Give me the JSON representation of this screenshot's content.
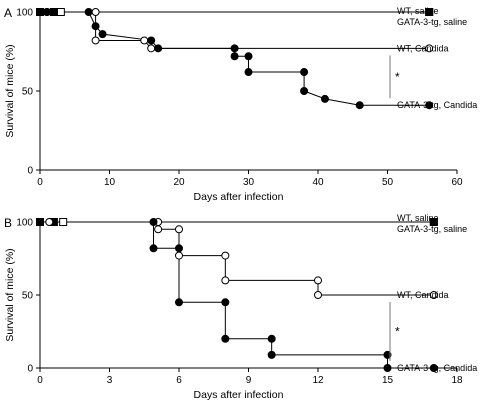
{
  "chart_data": [
    {
      "type": "line",
      "step": true,
      "panel_label": "A",
      "xlabel": "Days after infection",
      "ylabel": "Survival of mice (%)",
      "xlim": [
        0,
        60
      ],
      "ylim": [
        0,
        100
      ],
      "xticks": [
        0,
        10,
        20,
        30,
        40,
        50,
        60
      ],
      "yticks": [
        0,
        50,
        100
      ],
      "grid": false,
      "series": [
        {
          "name": "WT, saline",
          "marker": "open-square",
          "x": [
            0,
            3,
            56
          ],
          "y": [
            100,
            100,
            100
          ]
        },
        {
          "name": "GATA-3-tg, saline",
          "marker": "filled-square",
          "x": [
            0,
            2,
            56
          ],
          "y": [
            100,
            100,
            100
          ]
        },
        {
          "name": "WT, Candida",
          "marker": "open-circle",
          "x": [
            0,
            1,
            8,
            8,
            15,
            16,
            56
          ],
          "y": [
            100,
            100,
            100,
            82,
            82,
            77,
            77
          ]
        },
        {
          "name": "GATA-3-tg, Candida",
          "marker": "filled-circle",
          "x": [
            0,
            1,
            7,
            8,
            9,
            16,
            17,
            28,
            28,
            30,
            30,
            38,
            38,
            41,
            46,
            56
          ],
          "y": [
            100,
            100,
            100,
            91,
            86,
            82,
            77,
            77,
            72,
            72,
            62,
            62,
            50,
            45,
            41,
            41
          ]
        }
      ],
      "annotations": [
        "*"
      ]
    },
    {
      "type": "line",
      "step": true,
      "panel_label": "B",
      "xlabel": "Days after infection",
      "ylabel": "Survival of mice (%)",
      "xlim": [
        0,
        18
      ],
      "ylim": [
        0,
        100
      ],
      "xticks": [
        0,
        3,
        6,
        9,
        12,
        15,
        18
      ],
      "yticks": [
        0,
        50,
        100
      ],
      "grid": false,
      "series": [
        {
          "name": "WT, saline",
          "marker": "open-square",
          "x": [
            0,
            1,
            17
          ],
          "y": [
            100,
            100,
            100
          ]
        },
        {
          "name": "GATA-3-tg, saline",
          "marker": "filled-square",
          "x": [
            0,
            0.6,
            17
          ],
          "y": [
            100,
            100,
            100
          ]
        },
        {
          "name": "WT, Candida",
          "marker": "open-circle",
          "x": [
            0,
            0.4,
            5.1,
            5.1,
            6,
            6,
            8,
            8,
            12,
            12,
            17
          ],
          "y": [
            100,
            100,
            100,
            95,
            95,
            77,
            77,
            60,
            60,
            50,
            50
          ]
        },
        {
          "name": "GATA-3-tg, Candida",
          "marker": "filled-circle",
          "x": [
            0,
            4.9,
            4.9,
            6,
            6,
            8,
            8,
            10,
            10,
            15,
            15,
            17
          ],
          "y": [
            100,
            100,
            82,
            82,
            45,
            45,
            20,
            20,
            9,
            9,
            0,
            0
          ]
        }
      ],
      "annotations": [
        "*"
      ]
    }
  ]
}
